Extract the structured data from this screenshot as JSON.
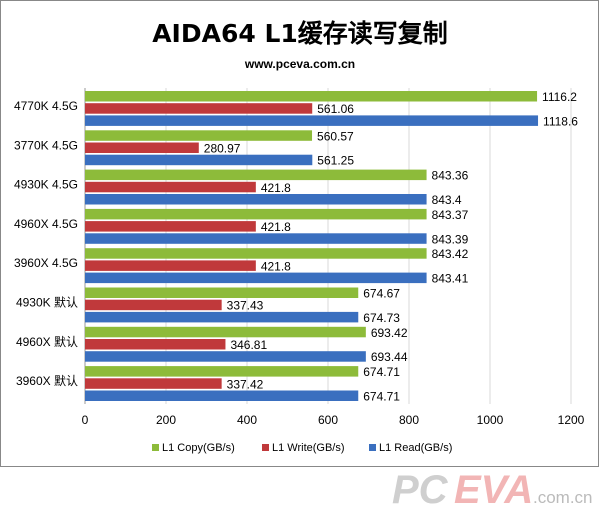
{
  "chart_data": {
    "type": "bar",
    "orientation": "horizontal",
    "title": "AIDA64 L1缓存读写复制",
    "subtitle": "www.pceva.com.cn",
    "categories": [
      "4770K 4.5G",
      "3770K 4.5G",
      "4930K 4.5G",
      "4960X 4.5G",
      "3960X 4.5G",
      "4930K 默认",
      "4960X 默认",
      "3960X 默认"
    ],
    "series": [
      {
        "name": "L1 Copy(GB/s)",
        "color": "#8dbb3a",
        "values": [
          1116.2,
          560.57,
          843.36,
          843.37,
          843.42,
          674.67,
          693.42,
          674.71
        ]
      },
      {
        "name": "L1 Write(GB/s)",
        "color": "#c0393b",
        "values": [
          561.06,
          280.97,
          421.8,
          421.8,
          421.8,
          337.43,
          346.81,
          337.42
        ]
      },
      {
        "name": "L1 Read(GB/s)",
        "color": "#3a6fbf",
        "values": [
          1118.6,
          561.25,
          843.4,
          843.39,
          843.41,
          674.73,
          693.44,
          674.71
        ]
      }
    ],
    "value_labels": [
      [
        "1116.2",
        "561.06",
        "1118.6"
      ],
      [
        "560.57",
        "280.97",
        "561.25"
      ],
      [
        "843.36",
        "421.8",
        "843.4"
      ],
      [
        "843.37",
        "421.8",
        "843.39"
      ],
      [
        "843.42",
        "421.8",
        "843.41"
      ],
      [
        "674.67",
        "337.43",
        "674.73"
      ],
      [
        "693.42",
        "346.81",
        "693.44"
      ],
      [
        "674.71",
        "337.42",
        "674.71"
      ]
    ],
    "xticks": [
      "0",
      "200",
      "400",
      "600",
      "800",
      "1000",
      "1200"
    ],
    "xlim": [
      0,
      1200
    ],
    "grid": true,
    "legend": "bottom"
  },
  "watermark": {
    "brand_pc": "PC",
    "brand_eva": "EVA",
    "suffix": ".com.cn"
  }
}
